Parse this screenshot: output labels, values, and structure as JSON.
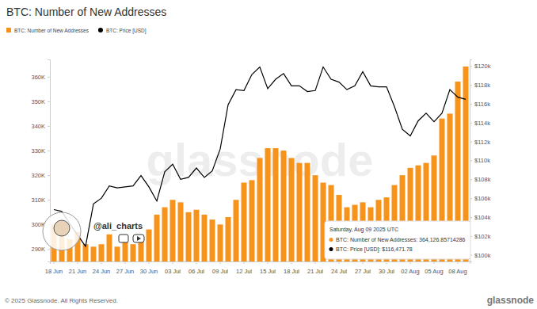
{
  "chart_data": {
    "type": "bar",
    "title": "BTC: Number of New Addresses",
    "categories": [
      "18 Jun",
      null,
      null,
      "21 Jun",
      null,
      null,
      "24 Jun",
      null,
      null,
      "27 Jun",
      null,
      null,
      "30 Jun",
      null,
      null,
      "03 Jul",
      null,
      null,
      "06 Jul",
      null,
      null,
      "09 Jul",
      null,
      null,
      "12 Jul",
      null,
      null,
      "15 Jul",
      null,
      null,
      "18 Jul",
      null,
      null,
      "21 Jul",
      null,
      null,
      "24 Jul",
      null,
      null,
      "27 Jul",
      null,
      null,
      "30 Jul",
      null,
      null,
      "02 Aug",
      null,
      null,
      "05 Aug",
      null,
      null,
      "08 Aug",
      null
    ],
    "series": [
      {
        "name": "BTC: Number of New Addresses",
        "type": "bar",
        "color": "#f7931a",
        "values": [
          300000,
          296000,
          294000,
          297000,
          292000,
          291000,
          292000,
          296000,
          291000,
          293000,
          292000,
          294000,
          298000,
          304000,
          307000,
          310000,
          309000,
          305000,
          306000,
          304000,
          302000,
          300000,
          303000,
          310000,
          317000,
          318000,
          327000,
          331000,
          331000,
          330000,
          327000,
          325000,
          325000,
          320000,
          317000,
          316000,
          312000,
          307000,
          308000,
          309000,
          307000,
          310000,
          311000,
          316000,
          320000,
          323000,
          324000,
          325000,
          328000,
          343000,
          345000,
          358000,
          364126.85714286
        ]
      },
      {
        "name": "BTC: Price [USD]",
        "type": "line",
        "color": "#000000",
        "axis": "y2",
        "values": [
          104800,
          104600,
          103300,
          102100,
          100900,
          105400,
          106000,
          107300,
          107100,
          107200,
          107300,
          108400,
          107200,
          105700,
          108800,
          109600,
          108000,
          108200,
          109200,
          108200,
          108900,
          111200,
          115900,
          117500,
          117400,
          119100,
          119900,
          117600,
          118600,
          119200,
          117900,
          117900,
          117300,
          117400,
          119900,
          118600,
          118300,
          117500,
          117900,
          119400,
          117900,
          117800,
          117800,
          115700,
          113300,
          112600,
          114200,
          115000,
          114100,
          115000,
          117500,
          116700,
          116471.78
        ]
      }
    ],
    "ylim": [
      285000,
      367000
    ],
    "yticks": [
      {
        "value": 290000,
        "label": "290K"
      },
      {
        "value": 300000,
        "label": "300K"
      },
      {
        "value": 310000,
        "label": "310K"
      },
      {
        "value": 320000,
        "label": "320K"
      },
      {
        "value": 330000,
        "label": "330K"
      },
      {
        "value": 340000,
        "label": "340K"
      },
      {
        "value": 350000,
        "label": "350K"
      },
      {
        "value": 360000,
        "label": "360K"
      }
    ],
    "y2lim": [
      99300,
      120700
    ],
    "y2ticks": [
      {
        "value": 100000,
        "label": "$100k"
      },
      {
        "value": 102000,
        "label": "$102k"
      },
      {
        "value": 104000,
        "label": "$104k"
      },
      {
        "value": 106000,
        "label": "$106k"
      },
      {
        "value": 108000,
        "label": "$108k"
      },
      {
        "value": 110000,
        "label": "$110k"
      },
      {
        "value": 112000,
        "label": "$112k"
      },
      {
        "value": 114000,
        "label": "$114k"
      },
      {
        "value": 116000,
        "label": "$116k"
      },
      {
        "value": 118000,
        "label": "$118k"
      },
      {
        "value": 120000,
        "label": "$120k"
      }
    ],
    "grid": false,
    "legend": "top-left",
    "annotations": [
      "Saturday, Aug 09 2025 UTC",
      "BTC: Number of New Addresses: 364,126.85714286",
      "BTC: Price [USD]: $116,471.78",
      "@ali_charts",
      "glassnode",
      "© 2025 Glassnode. All Rights Reserved.",
      "glassnode"
    ]
  }
}
